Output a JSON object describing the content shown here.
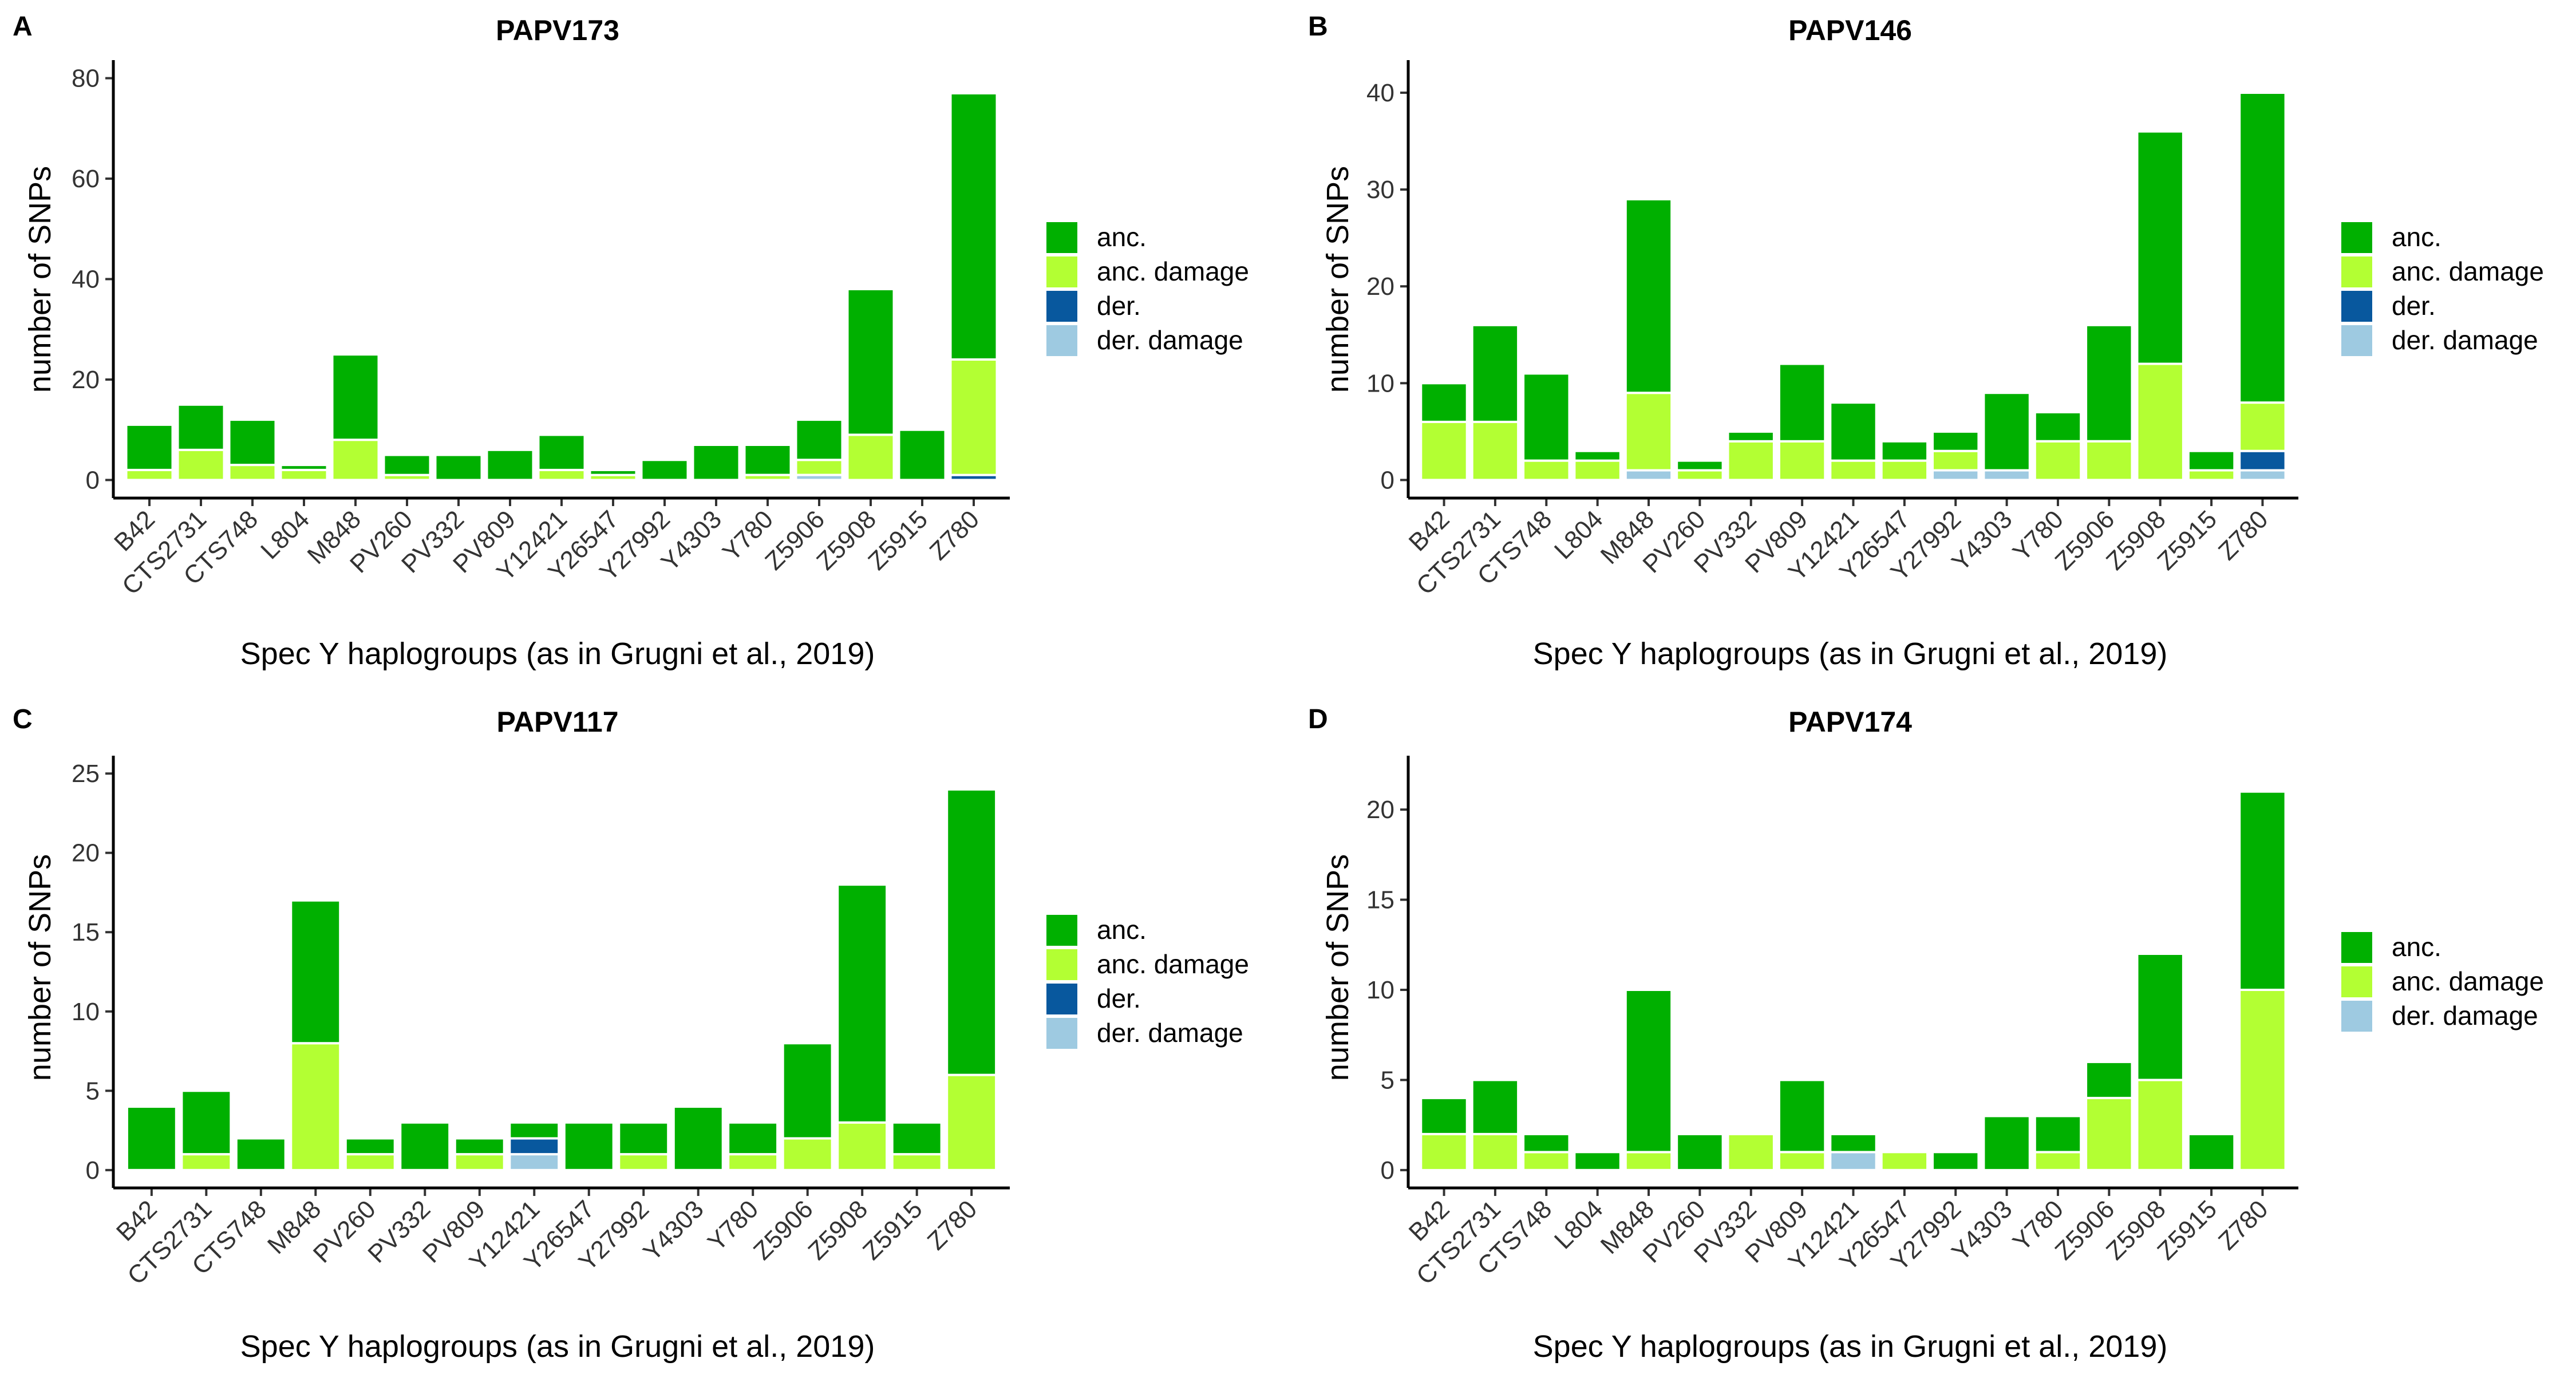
{
  "chart_data": [
    {
      "type": "bar",
      "panel_letter": "A",
      "title": "PAPV173",
      "xlabel": "Spec Y haplogroups (as in Grugni et al., 2019)",
      "ylabel": "number of SNPs",
      "ylim": [
        0,
        80
      ],
      "yticks": [
        0,
        20,
        40,
        60,
        80
      ],
      "stacked": true,
      "categories": [
        "B42",
        "CTS2731",
        "CTS748",
        "L804",
        "M848",
        "PV260",
        "PV332",
        "PV809",
        "Y12421",
        "Y26547",
        "Y27992",
        "Y4303",
        "Y780",
        "Z5906",
        "Z5908",
        "Z5915",
        "Z780"
      ],
      "series": [
        {
          "name": "der. damage",
          "color": "#9ecae1",
          "values": [
            0,
            0,
            0,
            0,
            0,
            0,
            0,
            0,
            0,
            0,
            0,
            0,
            0,
            1,
            0,
            0,
            0
          ]
        },
        {
          "name": "der.",
          "color": "#08589e",
          "values": [
            0,
            0,
            0,
            0,
            0,
            0,
            0,
            0,
            0,
            0,
            0,
            0,
            0,
            0,
            0,
            0,
            1
          ]
        },
        {
          "name": "anc. damage",
          "color": "#b3ff33",
          "values": [
            2,
            6,
            3,
            2,
            8,
            1,
            0,
            0,
            2,
            1,
            0,
            0,
            1,
            3,
            9,
            0,
            23
          ]
        },
        {
          "name": "anc.",
          "color": "#00b000",
          "values": [
            9,
            9,
            9,
            1,
            17,
            4,
            5,
            6,
            7,
            1,
            4,
            7,
            6,
            8,
            29,
            10,
            53
          ]
        }
      ],
      "legend": [
        "anc.",
        "anc. damage",
        "der.",
        "der. damage"
      ],
      "legend_position": "right"
    },
    {
      "type": "bar",
      "panel_letter": "B",
      "title": "PAPV146",
      "xlabel": "Spec Y haplogroups (as in Grugni et al., 2019)",
      "ylabel": "number of SNPs",
      "ylim": [
        0,
        41.5
      ],
      "yticks": [
        0,
        10,
        20,
        30,
        40
      ],
      "stacked": true,
      "categories": [
        "B42",
        "CTS2731",
        "CTS748",
        "L804",
        "M848",
        "PV260",
        "PV332",
        "PV809",
        "Y12421",
        "Y26547",
        "Y27992",
        "Y4303",
        "Y780",
        "Z5906",
        "Z5908",
        "Z5915",
        "Z780"
      ],
      "series": [
        {
          "name": "der. damage",
          "color": "#9ecae1",
          "values": [
            0,
            0,
            0,
            0,
            1,
            0,
            0,
            0,
            0,
            0,
            1,
            1,
            0,
            0,
            0,
            0,
            1
          ]
        },
        {
          "name": "der.",
          "color": "#08589e",
          "values": [
            0,
            0,
            0,
            0,
            0,
            0,
            0,
            0,
            0,
            0,
            0,
            0,
            0,
            0,
            0,
            0,
            2
          ]
        },
        {
          "name": "anc. damage",
          "color": "#b3ff33",
          "values": [
            6,
            6,
            2,
            2,
            8,
            1,
            4,
            4,
            2,
            2,
            2,
            0,
            4,
            4,
            12,
            1,
            5
          ]
        },
        {
          "name": "anc.",
          "color": "#00b000",
          "values": [
            4,
            10,
            9,
            1,
            20,
            1,
            1,
            8,
            6,
            2,
            2,
            8,
            3,
            12,
            24,
            2,
            32
          ]
        }
      ],
      "legend": [
        "anc.",
        "anc. damage",
        "der.",
        "der. damage"
      ],
      "legend_position": "right"
    },
    {
      "type": "bar",
      "panel_letter": "C",
      "title": "PAPV117",
      "xlabel": "Spec Y haplogroups (as in Grugni et al., 2019)",
      "ylabel": "number of SNPs",
      "ylim": [
        0,
        25
      ],
      "yticks": [
        0,
        5,
        10,
        15,
        20,
        25
      ],
      "stacked": true,
      "categories": [
        "B42",
        "CTS2731",
        "CTS748",
        "M848",
        "PV260",
        "PV332",
        "PV809",
        "Y12421",
        "Y26547",
        "Y27992",
        "Y4303",
        "Y780",
        "Z5906",
        "Z5908",
        "Z5915",
        "Z780"
      ],
      "series": [
        {
          "name": "der. damage",
          "color": "#9ecae1",
          "values": [
            0,
            0,
            0,
            0,
            0,
            0,
            0,
            1,
            0,
            0,
            0,
            0,
            0,
            0,
            0,
            0
          ]
        },
        {
          "name": "der.",
          "color": "#08589e",
          "values": [
            0,
            0,
            0,
            0,
            0,
            0,
            0,
            1,
            0,
            0,
            0,
            0,
            0,
            0,
            0,
            0
          ]
        },
        {
          "name": "anc. damage",
          "color": "#b3ff33",
          "values": [
            0,
            1,
            0,
            8,
            1,
            0,
            1,
            0,
            0,
            1,
            0,
            1,
            2,
            3,
            1,
            6
          ]
        },
        {
          "name": "anc.",
          "color": "#00b000",
          "values": [
            4,
            4,
            2,
            9,
            1,
            3,
            1,
            1,
            3,
            2,
            4,
            2,
            6,
            15,
            2,
            18
          ]
        }
      ],
      "legend": [
        "anc.",
        "anc. damage",
        "der.",
        "der. damage"
      ],
      "legend_position": "right"
    },
    {
      "type": "bar",
      "panel_letter": "D",
      "title": "PAPV174",
      "xlabel": "Spec Y haplogroups (as in Grugni et al., 2019)",
      "ylabel": "number of SNPs",
      "ylim": [
        0,
        22
      ],
      "yticks": [
        0,
        5,
        10,
        15,
        20
      ],
      "stacked": true,
      "categories": [
        "B42",
        "CTS2731",
        "CTS748",
        "L804",
        "M848",
        "PV260",
        "PV332",
        "PV809",
        "Y12421",
        "Y26547",
        "Y27992",
        "Y4303",
        "Y780",
        "Z5906",
        "Z5908",
        "Z5915",
        "Z780"
      ],
      "series": [
        {
          "name": "der. damage",
          "color": "#9ecae1",
          "values": [
            0,
            0,
            0,
            0,
            0,
            0,
            0,
            0,
            1,
            0,
            0,
            0,
            0,
            0,
            0,
            0,
            0
          ]
        },
        {
          "name": "anc. damage",
          "color": "#b3ff33",
          "values": [
            2,
            2,
            1,
            0,
            1,
            0,
            2,
            1,
            0,
            1,
            0,
            0,
            1,
            4,
            5,
            0,
            10
          ]
        },
        {
          "name": "anc.",
          "color": "#00b000",
          "values": [
            2,
            3,
            1,
            1,
            9,
            2,
            0,
            4,
            1,
            0,
            1,
            3,
            2,
            2,
            7,
            2,
            11
          ]
        }
      ],
      "legend": [
        "anc.",
        "anc. damage",
        "der. damage"
      ],
      "legend_position": "right"
    }
  ]
}
